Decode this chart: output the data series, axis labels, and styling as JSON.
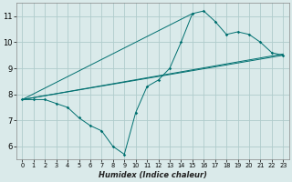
{
  "title": "",
  "xlabel": "Humidex (Indice chaleur)",
  "bg_color": "#daeaea",
  "grid_color": "#b0cccc",
  "line_color": "#007070",
  "xlim": [
    -0.5,
    23.5
  ],
  "ylim": [
    5.5,
    11.5
  ],
  "xticks": [
    0,
    1,
    2,
    3,
    4,
    5,
    6,
    7,
    8,
    9,
    10,
    11,
    12,
    13,
    14,
    15,
    16,
    17,
    18,
    19,
    20,
    21,
    22,
    23
  ],
  "yticks": [
    6,
    7,
    8,
    9,
    10,
    11
  ],
  "main_line": {
    "x": [
      0,
      1,
      2,
      3,
      4,
      5,
      6,
      7,
      8,
      9,
      10,
      11,
      12,
      13,
      14,
      15,
      16,
      17,
      18,
      19,
      20,
      21,
      22,
      23
    ],
    "y": [
      7.8,
      7.8,
      7.8,
      7.65,
      7.5,
      7.1,
      6.8,
      6.6,
      6.0,
      5.7,
      7.3,
      8.3,
      8.55,
      9.0,
      10.0,
      11.1,
      11.2,
      10.8,
      10.3,
      10.4,
      10.3,
      10.0,
      9.6,
      9.5
    ]
  },
  "trend_lines": [
    {
      "x": [
        0,
        23
      ],
      "y": [
        7.8,
        9.5
      ]
    },
    {
      "x": [
        0,
        23
      ],
      "y": [
        7.8,
        9.55
      ]
    },
    {
      "x": [
        0,
        15
      ],
      "y": [
        7.8,
        11.1
      ]
    }
  ]
}
